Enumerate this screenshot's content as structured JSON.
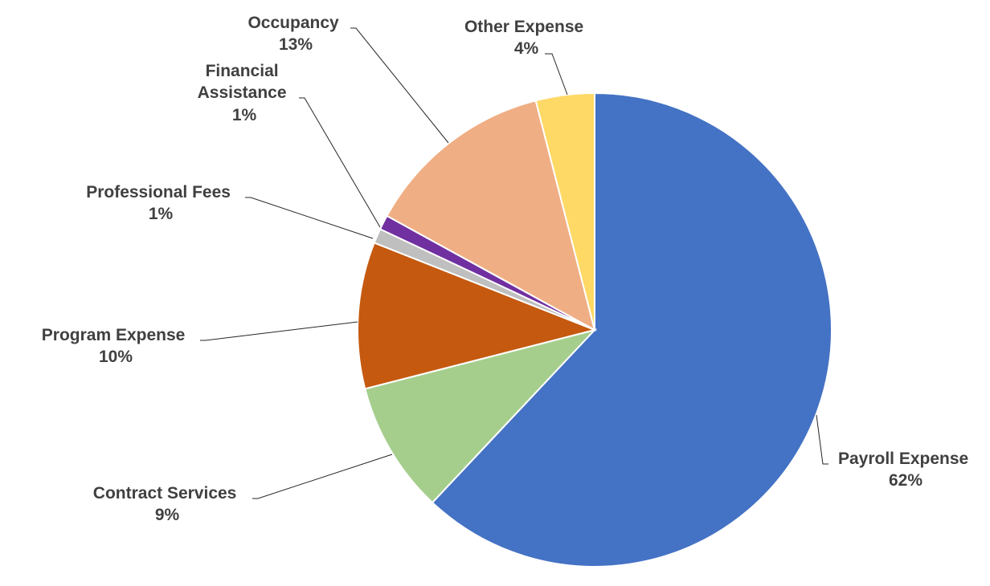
{
  "chart_data": {
    "type": "pie",
    "title": "",
    "legend": "none",
    "slices": [
      {
        "name": "Payroll Expense",
        "value": 62,
        "label": "62%",
        "color": "#4472C4"
      },
      {
        "name": "Contract Services",
        "value": 9,
        "label": "9%",
        "color": "#A5CE8D"
      },
      {
        "name": "Program Expense",
        "value": 10,
        "label": "10%",
        "color": "#C5590F"
      },
      {
        "name": "Professional Fees",
        "value": 1,
        "label": "1%",
        "color": "#BFBFBF"
      },
      {
        "name": "Financial Assistance",
        "value": 1,
        "label": "1%",
        "color": "#7030A0"
      },
      {
        "name": "Occupancy",
        "value": 13,
        "label": "13%",
        "color": "#F0AE84"
      },
      {
        "name": "Other Expense",
        "value": 4,
        "label": "4%",
        "color": "#FFD966"
      }
    ]
  }
}
